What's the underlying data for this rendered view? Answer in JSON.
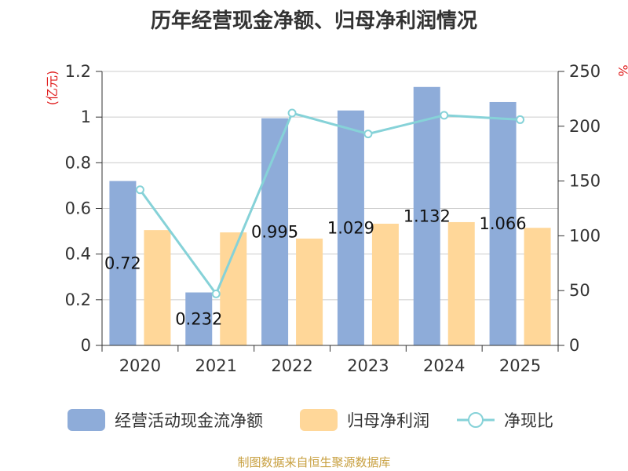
{
  "title": "历年经营现金净额、归母净利润情况",
  "footer": "制图数据来自恒生聚源数据库",
  "chart_data": {
    "type": "bar+line",
    "categories": [
      "2020",
      "2021",
      "2022",
      "2023",
      "2024",
      "2025"
    ],
    "series": [
      {
        "name": "经营活动现金流净额",
        "type": "bar",
        "axis": "left",
        "color": "#8eacd9",
        "values": [
          0.72,
          0.232,
          0.995,
          1.029,
          1.132,
          1.066
        ],
        "labels": [
          "0.72",
          "0.232",
          "0.995",
          "1.029",
          "1.132",
          "1.066"
        ]
      },
      {
        "name": "归母净利润",
        "type": "bar",
        "axis": "left",
        "color": "#ffd799",
        "values": [
          0.505,
          0.495,
          0.468,
          0.533,
          0.54,
          0.515
        ]
      },
      {
        "name": "净现比",
        "type": "line",
        "axis": "right",
        "color": "#86d2d8",
        "values": [
          142,
          47,
          212,
          193,
          210,
          206
        ]
      }
    ],
    "left_axis": {
      "unit": "(亿元)",
      "ylim": [
        0,
        1.2
      ],
      "ticks": [
        "0",
        "0.2",
        "0.4",
        "0.6",
        "0.8",
        "1",
        "1.2"
      ]
    },
    "right_axis": {
      "unit": "%",
      "ylim": [
        0,
        250
      ],
      "ticks": [
        "0",
        "50",
        "100",
        "150",
        "200",
        "250"
      ]
    },
    "legend_position": "bottom"
  }
}
